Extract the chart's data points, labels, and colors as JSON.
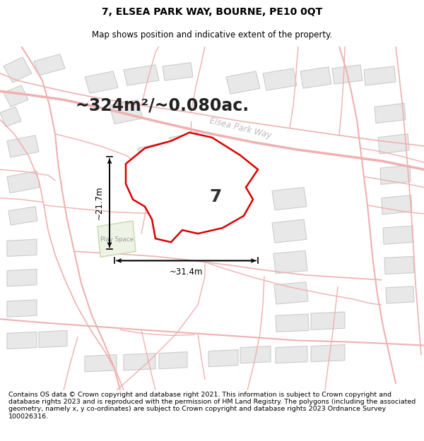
{
  "title": "7, ELSEA PARK WAY, BOURNE, PE10 0QT",
  "subtitle": "Map shows position and indicative extent of the property.",
  "area_text": "~324m²/~0.080ac.",
  "width_label": "~31.4m",
  "height_label": "~21.7m",
  "property_number": "7",
  "play_space_label": "Play Space",
  "footer": "Contains OS data © Crown copyright and database right 2021. This information is subject to Crown copyright and database rights 2023 and is reproduced with the permission of HM Land Registry. The polygons (including the associated geometry, namely x, y co-ordinates) are subject to Crown copyright and database rights 2023 Ordnance Survey 100026316.",
  "map_bg": "#ffffff",
  "property_fill": "#ffffff",
  "property_edge": "#dd0000",
  "road_color": "#f0b0b0",
  "road_lw": 1.2,
  "building_fill": "#e8e8e8",
  "building_edge": "#cccccc",
  "building_lw": 0.8,
  "play_space_fill": "#edf3e5",
  "play_space_edge": "#c5d9a8",
  "road_label_color": "#b0b0b0",
  "title_fontsize": 10,
  "subtitle_fontsize": 8.5,
  "area_fontsize": 17,
  "label_fontsize": 8.5,
  "footer_fontsize": 6.8,
  "prop_lw": 1.8
}
